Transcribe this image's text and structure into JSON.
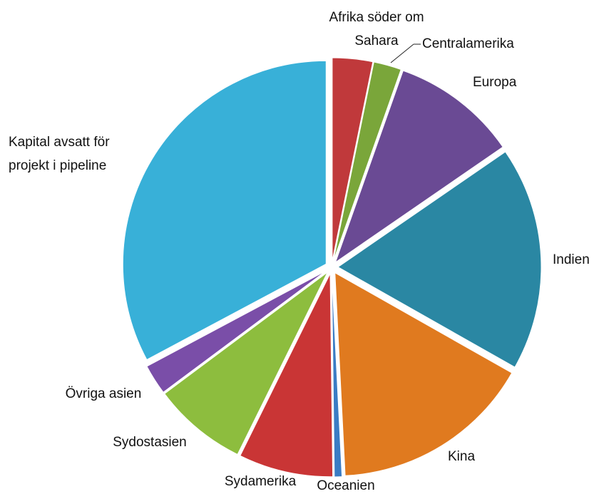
{
  "chart_data": {
    "type": "pie",
    "categories": [
      "Afrika söder om Sahara",
      "Centralamerika",
      "Europa",
      "Indien",
      "Kina",
      "Oceanien",
      "Sydamerika",
      "Sydostasien",
      "Övriga asien",
      "Kapital avsatt för projekt i pipeline"
    ],
    "values": [
      3.2,
      2.2,
      10,
      17.8,
      16,
      0.6,
      7.5,
      7.5,
      2.4,
      32.8
    ],
    "colors": [
      "#c0393b",
      "#7aa63a",
      "#6a4a94",
      "#2a87a3",
      "#e07a1f",
      "#3a7cc4",
      "#c93535",
      "#8dbd3e",
      "#7a4ea8",
      "#38b0d8"
    ]
  }
}
